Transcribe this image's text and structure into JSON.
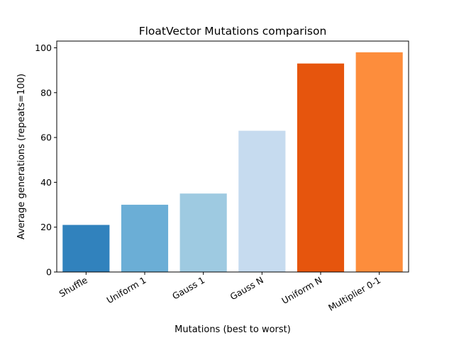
{
  "chart_data": {
    "type": "bar",
    "title": "FloatVector Mutations comparison",
    "xlabel": "Mutations (best to worst)",
    "ylabel": "Average generations (repeats=100)",
    "categories": [
      "Shuffle",
      "Uniform 1",
      "Gauss 1",
      "Gauss N",
      "Uniform N",
      "Multiplier 0-1"
    ],
    "values": [
      21,
      30,
      35,
      63,
      93,
      98
    ],
    "colors": [
      "#3182bd",
      "#6baed6",
      "#9ecae1",
      "#c6dbef",
      "#e6550d",
      "#fd8d3c"
    ],
    "ylim": [
      0,
      103
    ],
    "yticks": [
      0,
      20,
      40,
      60,
      80,
      100
    ],
    "grid": false,
    "legend": "none"
  }
}
